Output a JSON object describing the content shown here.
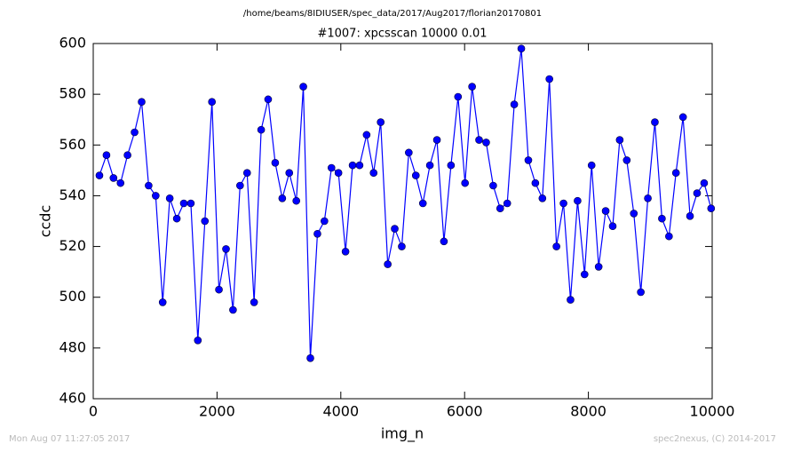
{
  "chart_data": {
    "type": "line",
    "suptitle": "/home/beams/8IDIUSER/spec_data/2017/Aug2017/florian20170801",
    "title": "#1007: xpcsscan 10000 0.01",
    "xlabel": "img_n",
    "ylabel": "ccdc",
    "x": [
      100,
      214,
      327,
      441,
      554,
      668,
      782,
      895,
      1009,
      1122,
      1236,
      1350,
      1463,
      1577,
      1690,
      1804,
      1918,
      2031,
      2145,
      2258,
      2372,
      2486,
      2599,
      2713,
      2826,
      2940,
      3054,
      3167,
      3281,
      3394,
      3508,
      3622,
      3735,
      3849,
      3962,
      4076,
      4190,
      4303,
      4417,
      4530,
      4644,
      4758,
      4871,
      4985,
      5098,
      5212,
      5326,
      5439,
      5553,
      5666,
      5780,
      5894,
      6007,
      6121,
      6234,
      6348,
      6462,
      6575,
      6689,
      6802,
      6916,
      7030,
      7143,
      7257,
      7370,
      7484,
      7598,
      7711,
      7825,
      7938,
      8052,
      8166,
      8279,
      8393,
      8506,
      8620,
      8734,
      8847,
      8961,
      9074,
      9188,
      9302,
      9415,
      9529,
      9642,
      9756,
      9870,
      9983
    ],
    "series": [
      {
        "color": "#0000ff",
        "values": [
          548,
          556,
          547,
          545,
          556,
          565,
          577,
          544,
          540,
          498,
          539,
          531,
          537,
          537,
          483,
          530,
          577,
          503,
          519,
          495,
          544,
          549,
          498,
          566,
          578,
          553,
          539,
          549,
          538,
          583,
          476,
          525,
          530,
          551,
          549,
          518,
          552,
          552,
          564,
          549,
          569,
          513,
          527,
          520,
          557,
          548,
          537,
          552,
          562,
          522,
          552,
          579,
          545,
          583,
          562,
          561,
          544,
          535,
          537,
          576,
          598,
          554,
          545,
          539,
          586,
          520,
          537,
          499,
          538,
          509,
          552,
          512,
          534,
          528,
          562,
          554,
          533,
          502,
          539,
          569,
          531,
          524,
          549,
          571,
          532,
          541,
          545,
          535
        ]
      }
    ],
    "xlim": [
      0,
      10000
    ],
    "xticks": [
      0,
      2000,
      4000,
      6000,
      8000,
      10000
    ],
    "ylim": [
      460,
      600
    ],
    "yticks": [
      460,
      480,
      500,
      520,
      540,
      560,
      580,
      600
    ],
    "grid": false
  },
  "footer": {
    "left": "Mon Aug 07 11:27:05 2017",
    "right": "spec2nexus, (C) 2014-2017"
  }
}
